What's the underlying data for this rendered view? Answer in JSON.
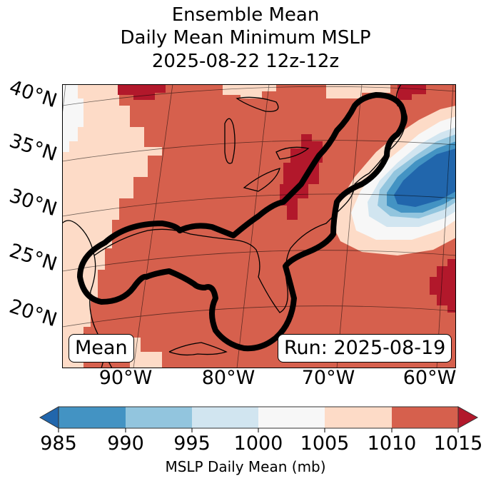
{
  "title": {
    "line1": "Ensemble Mean",
    "line2": "Daily Mean Minimum MSLP",
    "line3": "2025-08-22 12z-12z"
  },
  "map": {
    "lat_labels": [
      "40°N",
      "35°N",
      "30°N",
      "25°N",
      "20°N"
    ],
    "lon_labels": [
      "90°W",
      "80°W",
      "70°W",
      "60°W"
    ],
    "badge_left": "Mean",
    "badge_right": "Run: 2025-08-19",
    "features": {
      "contour": "thick black probability contour enclosing Gulf of Mexico and US East Coast",
      "low_pressure_center": "deep low (<990 mb) southeast of Nova Scotia / Atlantic"
    }
  },
  "colorbar": {
    "label": "MSLP Daily Mean (mb)",
    "ticks": [
      "985",
      "990",
      "995",
      "1000",
      "1005",
      "1010",
      "1015"
    ],
    "colors": {
      "under": "#2166ac",
      "985-990": "#4393c3",
      "990-995": "#92c5de",
      "995-1000": "#d1e5f0",
      "1000-1005": "#f7f7f7",
      "1005-1010": "#fddbc7",
      "1010-1015": "#d6604d",
      "over": "#b2182b"
    },
    "extend": "both"
  }
}
